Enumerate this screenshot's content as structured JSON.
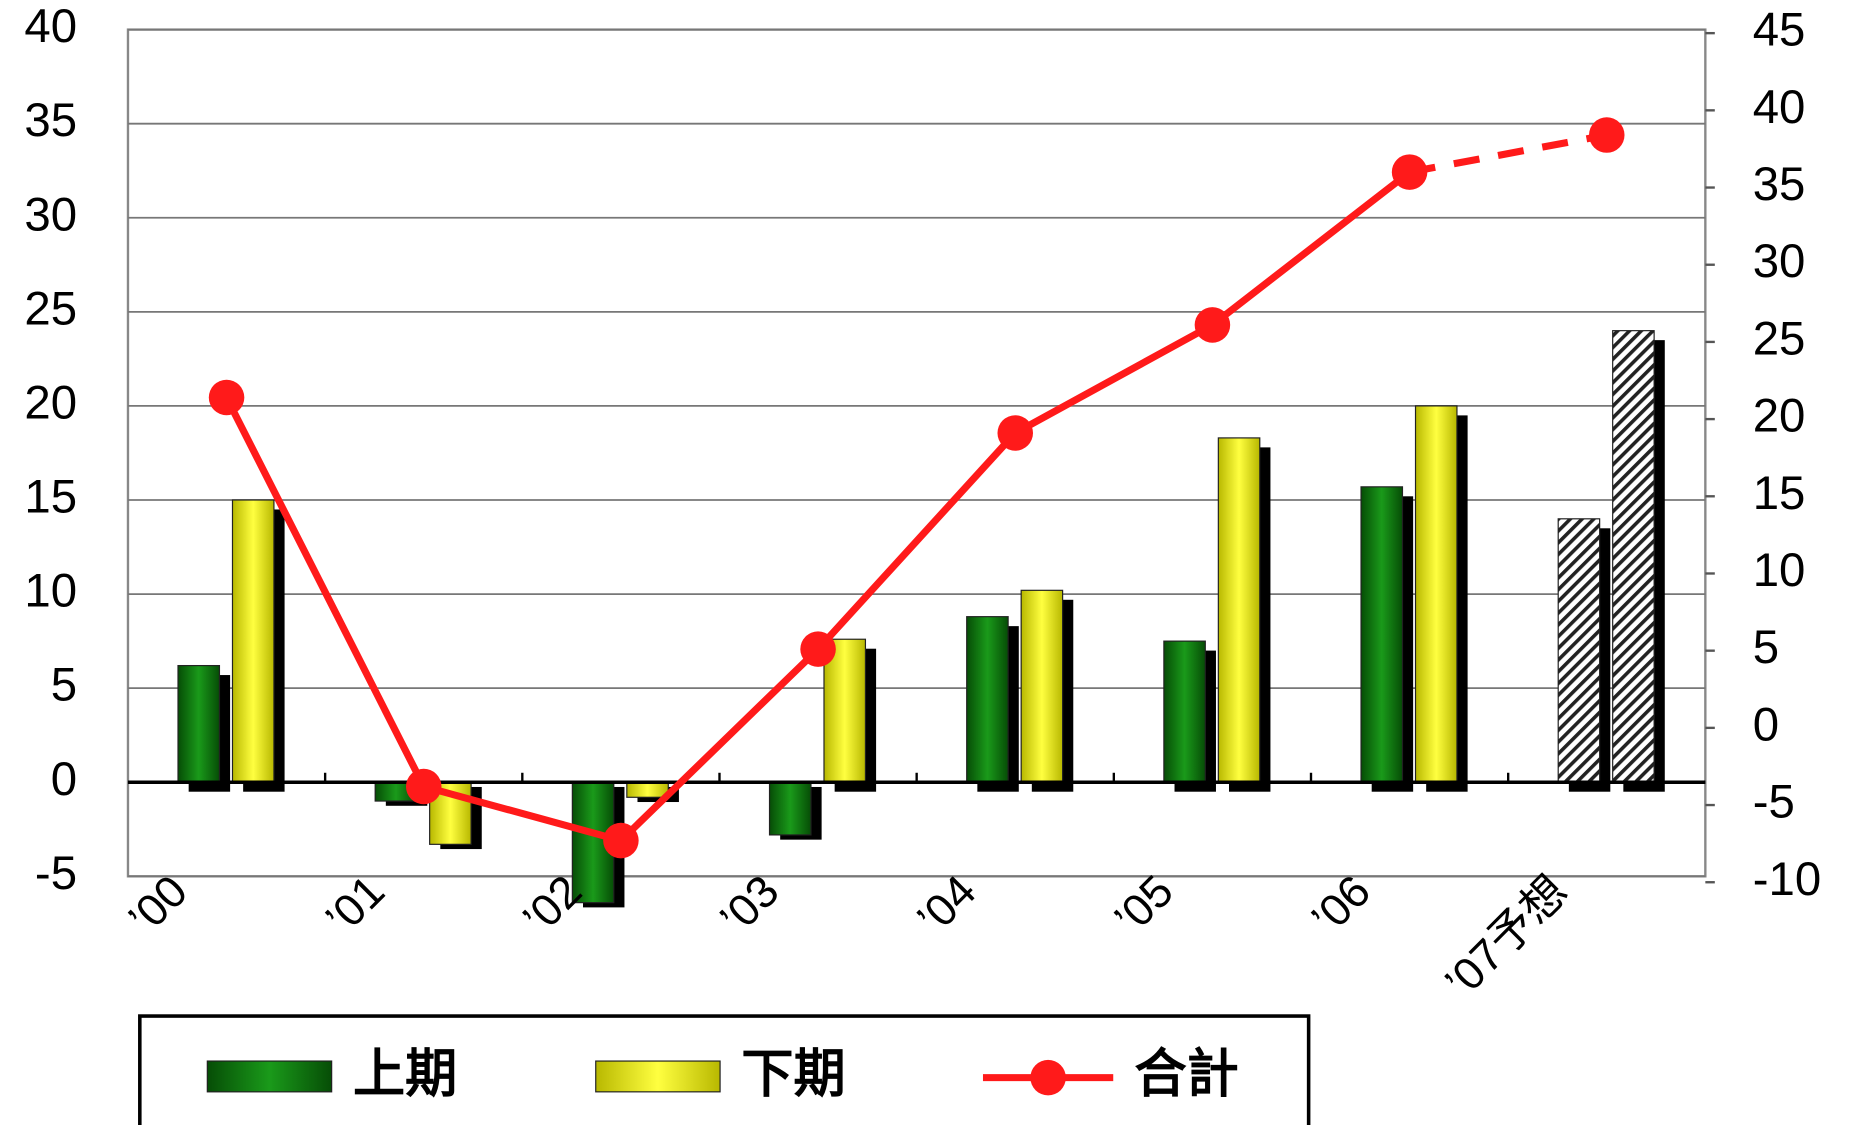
{
  "chart_data": {
    "type": "bar-line",
    "categories": [
      "’00",
      "’01",
      "’02",
      "’03",
      "’04",
      "’05",
      "’06",
      "’07予想"
    ],
    "series": [
      {
        "name": "上期",
        "color": "#0a7a0a",
        "values": [
          6.2,
          -1.0,
          -6.4,
          -2.8,
          8.8,
          7.5,
          15.7,
          14.0
        ]
      },
      {
        "name": "下期",
        "color": "#f5f500",
        "values": [
          15.0,
          -3.3,
          -0.8,
          7.6,
          10.2,
          18.3,
          20.0,
          24.0
        ]
      },
      {
        "name": "合計",
        "color": "#ff1a1a",
        "type": "line",
        "axis": "y2",
        "values": [
          21.4,
          -3.8,
          -7.3,
          5.1,
          19.1,
          26.1,
          36.0,
          38.4
        ]
      }
    ],
    "forecast_index": 7,
    "ylim": [
      -5,
      40
    ],
    "yticks": [
      -5,
      0,
      5,
      10,
      15,
      20,
      25,
      30,
      35,
      40
    ],
    "y2lim": [
      -10,
      45
    ],
    "y2ticks": [
      -10,
      -5,
      0,
      5,
      10,
      15,
      20,
      25,
      30,
      35,
      40,
      45
    ],
    "grid": true,
    "legend": "bottom"
  }
}
